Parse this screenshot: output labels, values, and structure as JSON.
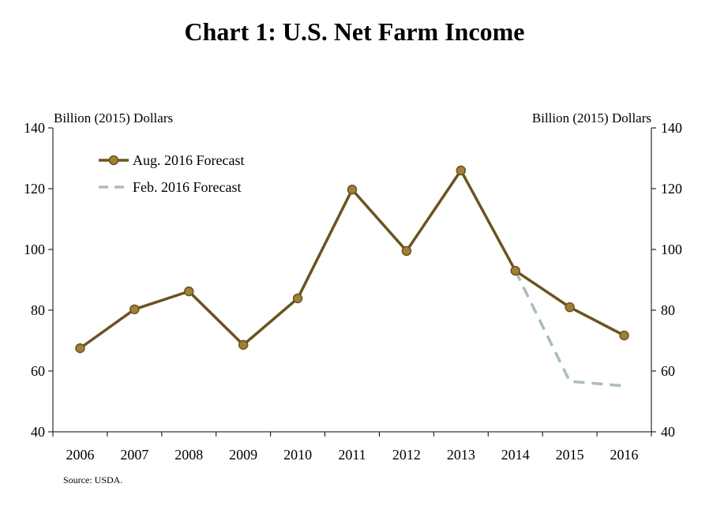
{
  "chart_data": {
    "type": "line",
    "title": "Chart 1: U.S. Net Farm Income",
    "ylabel_left": "Billion (2015) Dollars",
    "ylabel_right": "Billion (2015) Dollars",
    "ylim": [
      40,
      140
    ],
    "yticks": [
      40,
      60,
      80,
      100,
      120,
      140
    ],
    "categories": [
      "2006",
      "2007",
      "2008",
      "2009",
      "2010",
      "2011",
      "2012",
      "2013",
      "2014",
      "2015",
      "2016"
    ],
    "legend_position": "top-left",
    "grid": false,
    "series": [
      {
        "name": "Aug. 2016 Forecast",
        "color": "#6b5320",
        "marker_color": "#a08035",
        "style": "solid-markers",
        "values": [
          67.5,
          80.3,
          86.2,
          68.6,
          83.9,
          119.7,
          99.5,
          126.0,
          93.0,
          81.0,
          71.7
        ]
      },
      {
        "name": "Feb. 2016 Forecast",
        "color": "#a9bcc0",
        "style": "dashed",
        "values": [
          null,
          null,
          null,
          null,
          null,
          null,
          null,
          null,
          93.0,
          56.6,
          55.1
        ]
      }
    ],
    "source": "Source: USDA."
  }
}
